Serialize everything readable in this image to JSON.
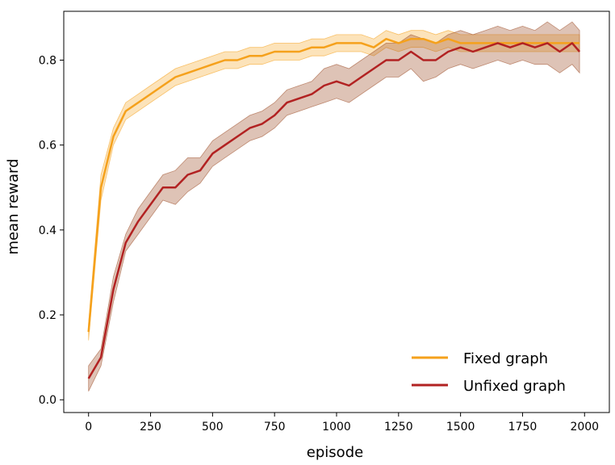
{
  "chart_data": {
    "type": "line",
    "title": "",
    "xlabel": "episode",
    "ylabel": "mean reward",
    "xlim": [
      -100,
      2100
    ],
    "ylim": [
      -0.03,
      0.915
    ],
    "xticks": [
      0,
      250,
      500,
      750,
      1000,
      1250,
      1500,
      1750,
      2000
    ],
    "xtick_labels": [
      "0",
      "250",
      "500",
      "750",
      "1000",
      "1250",
      "1500",
      "1750",
      "2000"
    ],
    "yticks": [
      0.0,
      0.2,
      0.4,
      0.6,
      0.8
    ],
    "ytick_labels": [
      "0.0",
      "0.2",
      "0.4",
      "0.6",
      "0.8"
    ],
    "grid": false,
    "legend_position": "bottom-right",
    "series": [
      {
        "name": "Fixed graph",
        "color": "#f5a11c",
        "band_color": "#f5a11c",
        "x": [
          0,
          50,
          100,
          150,
          200,
          250,
          300,
          350,
          400,
          450,
          500,
          550,
          600,
          650,
          700,
          750,
          800,
          850,
          900,
          950,
          1000,
          1050,
          1100,
          1150,
          1200,
          1250,
          1300,
          1350,
          1400,
          1450,
          1500,
          1550,
          1600,
          1650,
          1700,
          1750,
          1800,
          1850,
          1900,
          1950,
          1980
        ],
        "values": [
          0.16,
          0.5,
          0.62,
          0.68,
          0.7,
          0.72,
          0.74,
          0.76,
          0.77,
          0.78,
          0.79,
          0.8,
          0.8,
          0.81,
          0.81,
          0.82,
          0.82,
          0.82,
          0.83,
          0.83,
          0.84,
          0.84,
          0.84,
          0.83,
          0.85,
          0.84,
          0.85,
          0.85,
          0.84,
          0.85,
          0.84,
          0.84,
          0.84,
          0.84,
          0.84,
          0.84,
          0.84,
          0.84,
          0.84,
          0.84,
          0.84
        ],
        "spread": [
          0.02,
          0.03,
          0.02,
          0.02,
          0.02,
          0.02,
          0.02,
          0.02,
          0.02,
          0.02,
          0.02,
          0.02,
          0.02,
          0.02,
          0.02,
          0.02,
          0.02,
          0.02,
          0.02,
          0.02,
          0.02,
          0.02,
          0.02,
          0.02,
          0.02,
          0.02,
          0.02,
          0.02,
          0.02,
          0.02,
          0.02,
          0.02,
          0.02,
          0.02,
          0.02,
          0.02,
          0.02,
          0.02,
          0.02,
          0.02,
          0.02
        ]
      },
      {
        "name": "Unfixed graph",
        "color": "#b22222",
        "band_color": "#a0522d",
        "x": [
          0,
          50,
          100,
          150,
          200,
          250,
          300,
          350,
          400,
          450,
          500,
          550,
          600,
          650,
          700,
          750,
          800,
          850,
          900,
          950,
          1000,
          1050,
          1100,
          1150,
          1200,
          1250,
          1300,
          1350,
          1400,
          1450,
          1500,
          1550,
          1600,
          1650,
          1700,
          1750,
          1800,
          1850,
          1900,
          1950,
          1980
        ],
        "values": [
          0.05,
          0.1,
          0.26,
          0.37,
          0.42,
          0.46,
          0.5,
          0.5,
          0.53,
          0.54,
          0.58,
          0.6,
          0.62,
          0.64,
          0.65,
          0.67,
          0.7,
          0.71,
          0.72,
          0.74,
          0.75,
          0.74,
          0.76,
          0.78,
          0.8,
          0.8,
          0.82,
          0.8,
          0.8,
          0.82,
          0.83,
          0.82,
          0.83,
          0.84,
          0.83,
          0.84,
          0.83,
          0.84,
          0.82,
          0.84,
          0.82
        ],
        "spread": [
          0.03,
          0.02,
          0.03,
          0.02,
          0.03,
          0.03,
          0.03,
          0.04,
          0.04,
          0.03,
          0.03,
          0.03,
          0.03,
          0.03,
          0.03,
          0.03,
          0.03,
          0.03,
          0.03,
          0.04,
          0.04,
          0.04,
          0.04,
          0.04,
          0.04,
          0.04,
          0.04,
          0.05,
          0.04,
          0.04,
          0.04,
          0.04,
          0.04,
          0.04,
          0.04,
          0.04,
          0.04,
          0.05,
          0.05,
          0.05,
          0.05
        ]
      }
    ]
  }
}
